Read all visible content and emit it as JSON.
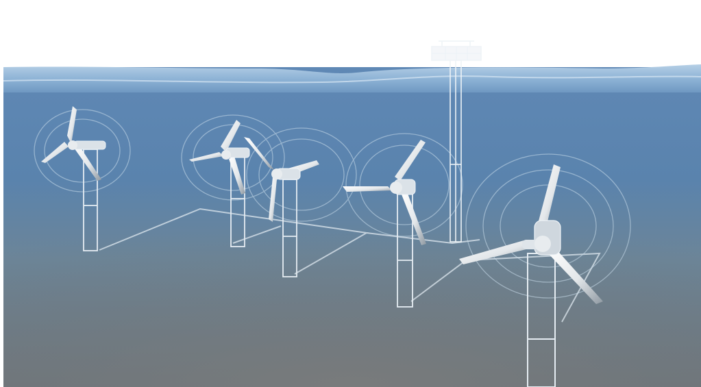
{
  "scene": {
    "subject": "underwater-tidal-turbine-array",
    "turbine_count": 5,
    "has_surface_platform": true,
    "colors": {
      "sky": "#ffffff",
      "water_surface": "#8fb4d6",
      "water_deep": "#5d86b3",
      "seabed": "#6f767a",
      "structure_outline": "#e6edf3",
      "blade": "#e9ecef",
      "blade_shadow": "#9aa3ab",
      "ripple": "#c9dcea"
    }
  }
}
